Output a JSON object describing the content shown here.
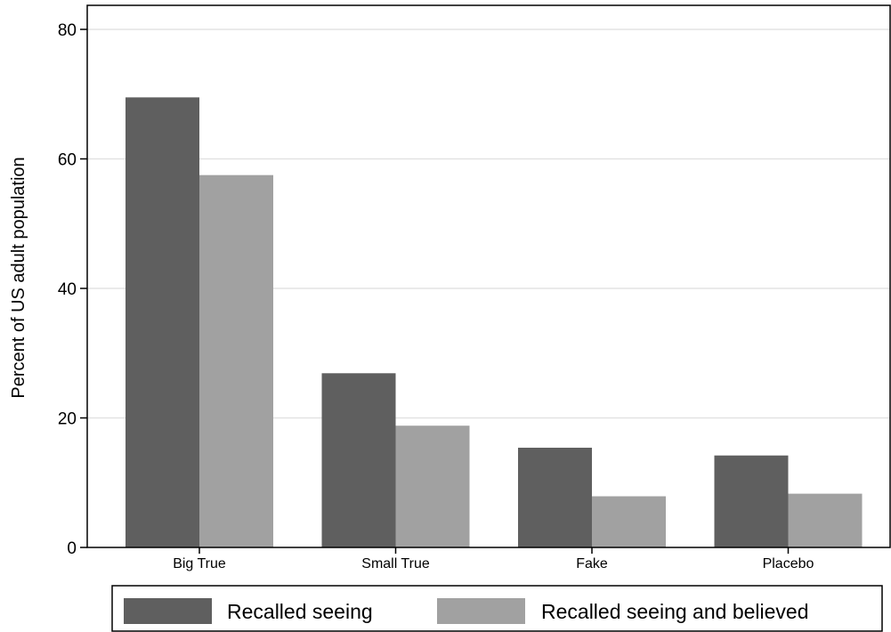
{
  "chart_data": {
    "type": "bar",
    "title": "",
    "xlabel": "",
    "ylabel": "Percent of US adult population",
    "ylim": [
      0,
      80
    ],
    "yticks": [
      0,
      20,
      40,
      60,
      80
    ],
    "categories": [
      "Big True",
      "Small True",
      "Fake",
      "Placebo"
    ],
    "series": [
      {
        "name": "Recalled seeing",
        "color": "#5f5f5f",
        "values": [
          69.5,
          26.9,
          15.4,
          14.2
        ]
      },
      {
        "name": "Recalled seeing and believed",
        "color": "#a1a1a1",
        "values": [
          57.5,
          18.8,
          7.9,
          8.3
        ]
      }
    ],
    "grid": true,
    "legend_position": "bottom"
  }
}
